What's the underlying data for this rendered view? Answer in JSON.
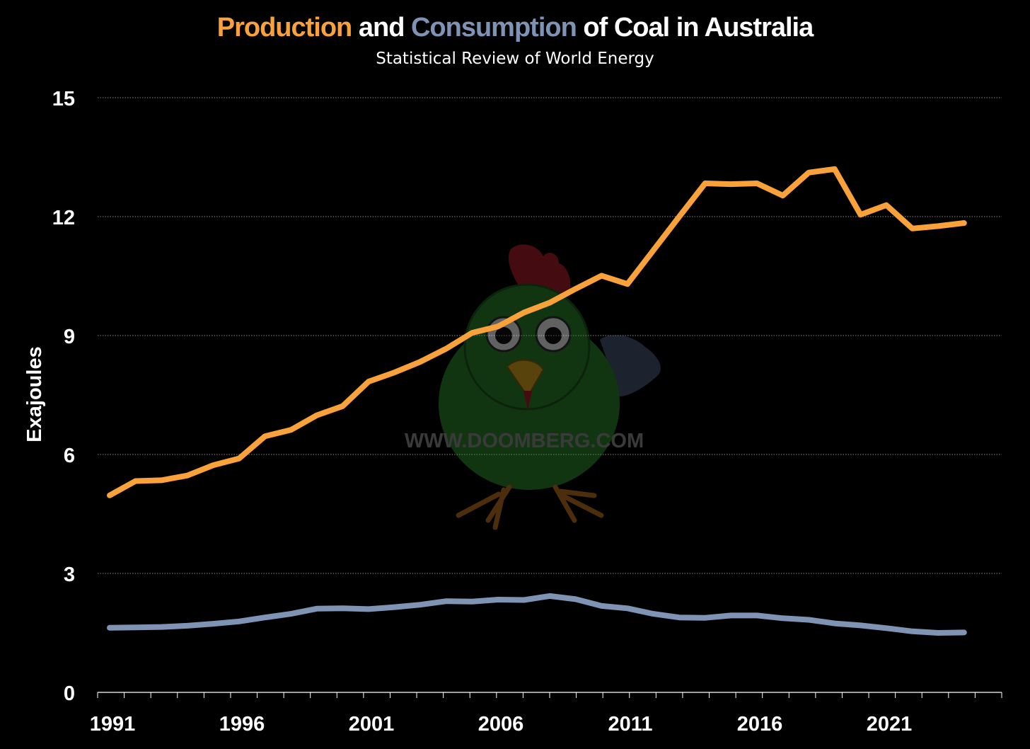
{
  "chart_data": {
    "type": "line",
    "title_parts": {
      "production": "Production",
      "and": "and",
      "consumption": "Consumption",
      "rest": "of Coal in Australia"
    },
    "subtitle": "Statistical Review of World Energy",
    "ylabel": "Exajoules",
    "xlabel": "",
    "ylim": [
      0,
      15
    ],
    "yticks": [
      0,
      3,
      6,
      9,
      12,
      15
    ],
    "xlim": [
      1991,
      2024
    ],
    "xtick_labels": [
      "1991",
      "1996",
      "2001",
      "2006",
      "2011",
      "2016",
      "2021"
    ],
    "grid": true,
    "x": [
      1991,
      1992,
      1993,
      1994,
      1995,
      1996,
      1997,
      1998,
      1999,
      2000,
      2001,
      2002,
      2003,
      2004,
      2005,
      2006,
      2007,
      2008,
      2009,
      2010,
      2011,
      2012,
      2013,
      2014,
      2015,
      2016,
      2017,
      2018,
      2019,
      2020,
      2021,
      2022,
      2023,
      2024
    ],
    "series": [
      {
        "name": "Production",
        "color": "#f9a13a",
        "values": [
          4.97,
          5.33,
          5.35,
          5.47,
          5.73,
          5.9,
          6.46,
          6.62,
          6.99,
          7.22,
          7.84,
          8.07,
          8.34,
          8.67,
          9.07,
          9.23,
          9.58,
          9.83,
          10.18,
          10.51,
          10.3,
          11.15,
          12.0,
          12.84,
          12.82,
          12.84,
          12.53,
          13.11,
          13.2,
          12.05,
          12.29,
          11.7,
          11.76,
          11.84
        ]
      },
      {
        "name": "Consumption",
        "color": "#7f93b5",
        "values": [
          1.63,
          1.64,
          1.65,
          1.68,
          1.73,
          1.79,
          1.89,
          1.98,
          2.11,
          2.12,
          2.1,
          2.15,
          2.21,
          2.3,
          2.29,
          2.34,
          2.33,
          2.43,
          2.35,
          2.18,
          2.12,
          1.98,
          1.89,
          1.88,
          1.94,
          1.94,
          1.87,
          1.83,
          1.74,
          1.69,
          1.62,
          1.54,
          1.5,
          1.51
        ]
      }
    ]
  },
  "watermark": {
    "text": "WWW.DOOMBERG.COM"
  }
}
